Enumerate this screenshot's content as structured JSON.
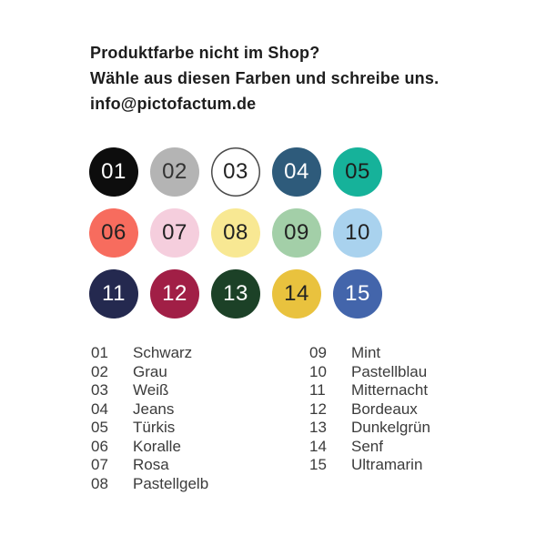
{
  "page": {
    "background": "#ffffff"
  },
  "header": {
    "line1": "Produktfarbe nicht im Shop?",
    "line2": "Wähle aus diesen Farben und schreibe uns.",
    "line3": "info@pictofactum.de"
  },
  "swatches": [
    {
      "number": "01",
      "name": "Schwarz",
      "color": "#0d0d0d",
      "text_color": "#ffffff"
    },
    {
      "number": "02",
      "name": "Grau",
      "color": "#b4b4b4",
      "text_color": "#333333"
    },
    {
      "number": "03",
      "name": "Weiß",
      "color": "#ffffff",
      "text_color": "#222222",
      "border_color": "#4a4a4a"
    },
    {
      "number": "04",
      "name": "Jeans",
      "color": "#2e5b7b",
      "text_color": "#ffffff"
    },
    {
      "number": "05",
      "name": "Türkis",
      "color": "#16b29a",
      "text_color": "#1d1d1b"
    },
    {
      "number": "06",
      "name": "Koralle",
      "color": "#f76c5e",
      "text_color": "#222222"
    },
    {
      "number": "07",
      "name": "Rosa",
      "color": "#f5cedd",
      "text_color": "#222222"
    },
    {
      "number": "08",
      "name": "Pastellgelb",
      "color": "#f8e893",
      "text_color": "#222222"
    },
    {
      "number": "09",
      "name": "Mint",
      "color": "#a3cfa8",
      "text_color": "#222222"
    },
    {
      "number": "10",
      "name": "Pastellblau",
      "color": "#a9d2ee",
      "text_color": "#222222"
    },
    {
      "number": "11",
      "name": "Mitternacht",
      "color": "#24294f",
      "text_color": "#ffffff"
    },
    {
      "number": "12",
      "name": "Bordeaux",
      "color": "#a11f46",
      "text_color": "#ffffff"
    },
    {
      "number": "13",
      "name": "Dunkelgrün",
      "color": "#1c4127",
      "text_color": "#ffffff"
    },
    {
      "number": "14",
      "name": "Senf",
      "color": "#e9c23e",
      "text_color": "#222222"
    },
    {
      "number": "15",
      "name": "Ultramarin",
      "color": "#4365ab",
      "text_color": "#ffffff"
    }
  ]
}
